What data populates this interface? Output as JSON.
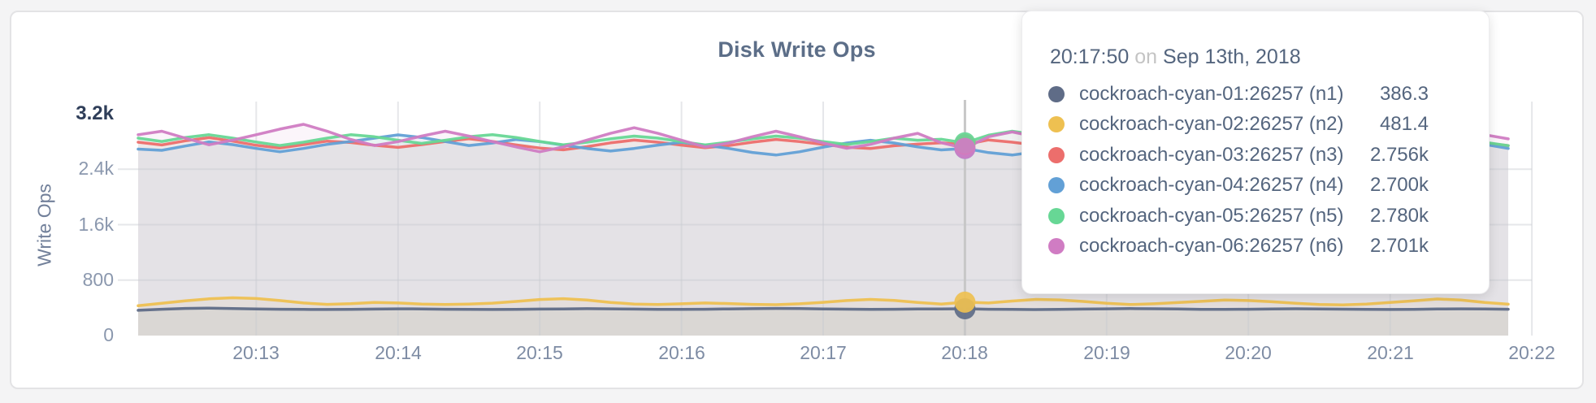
{
  "page": {
    "background_color": "#f4f4f5",
    "card_background": "#ffffff"
  },
  "chart": {
    "title": "Disk Write Ops",
    "y_axis_title": "Write Ops"
  },
  "tooltip": {
    "time": "20:17:50",
    "connector": "on",
    "date": "Sep 13th, 2018"
  },
  "chart_data": {
    "type": "line",
    "title": "Disk Write Ops",
    "xlabel": "",
    "ylabel": "Write Ops",
    "ylim": [
      0,
      3200
    ],
    "grid": true,
    "legend_position": "tooltip-only",
    "x_start_time": "20:12:10",
    "x_interval_seconds": 10,
    "x_ticks": [
      {
        "label": "20:13",
        "t": 50
      },
      {
        "label": "20:14",
        "t": 110
      },
      {
        "label": "20:15",
        "t": 170
      },
      {
        "label": "20:16",
        "t": 230
      },
      {
        "label": "20:17",
        "t": 290
      },
      {
        "label": "20:18",
        "t": 350
      },
      {
        "label": "20:19",
        "t": 410
      },
      {
        "label": "20:20",
        "t": 470
      },
      {
        "label": "20:21",
        "t": 530
      },
      {
        "label": "20:22",
        "t": 590
      }
    ],
    "y_ticks": [
      {
        "label": "0",
        "value": 0
      },
      {
        "label": "800",
        "value": 800
      },
      {
        "label": "1.6k",
        "value": 1600
      },
      {
        "label": "2.4k",
        "value": 2400
      },
      {
        "label": "3.2k",
        "value": 3200,
        "emphasis": true
      }
    ],
    "hover": {
      "index": 35,
      "time": "20:17:50",
      "date": "Sep 13th, 2018"
    },
    "series": [
      {
        "name": "cockroach-cyan-01:26257 (n1)",
        "color": "#5f6c87",
        "hover_value_display": "386.3",
        "values": [
          365,
          380,
          392,
          396,
          390,
          384,
          380,
          378,
          376,
          378,
          382,
          386,
          384,
          380,
          378,
          376,
          378,
          382,
          385,
          388,
          386,
          382,
          379,
          377,
          380,
          384,
          388,
          391,
          389,
          385,
          381,
          378,
          380,
          384,
          383,
          386.3,
          380,
          377,
          375,
          378,
          382,
          386,
          389,
          387,
          383,
          379,
          377,
          380,
          384,
          387,
          385,
          381,
          378,
          376,
          379,
          383,
          386,
          384,
          380
        ]
      },
      {
        "name": "cockroach-cyan-02:26257 (n2)",
        "color": "#eec051",
        "hover_value_display": "481.4",
        "values": [
          430,
          465,
          500,
          530,
          545,
          535,
          505,
          470,
          450,
          460,
          478,
          470,
          455,
          448,
          455,
          468,
          492,
          520,
          532,
          512,
          478,
          455,
          448,
          458,
          470,
          462,
          450,
          445,
          458,
          480,
          505,
          522,
          508,
          478,
          455,
          481.4,
          470,
          498,
          522,
          515,
          492,
          465,
          448,
          458,
          476,
          494,
          512,
          505,
          488,
          465,
          448,
          442,
          455,
          478,
          502,
          528,
          512,
          478,
          452
        ]
      },
      {
        "name": "cockroach-cyan-03:26257 (n3)",
        "color": "#ec6e6c",
        "hover_value_display": "2.756k",
        "values": [
          2790,
          2750,
          2810,
          2855,
          2805,
          2745,
          2705,
          2755,
          2805,
          2785,
          2745,
          2715,
          2755,
          2800,
          2840,
          2800,
          2750,
          2705,
          2680,
          2725,
          2780,
          2820,
          2790,
          2748,
          2710,
          2740,
          2790,
          2830,
          2798,
          2758,
          2718,
          2700,
          2738,
          2762,
          2782,
          2756,
          2822,
          2790,
          2748,
          2708,
          2690,
          2730,
          2780,
          2812,
          2780,
          2740,
          2702,
          2722,
          2760,
          2800,
          2778,
          2738,
          2700,
          2682,
          2722,
          2770,
          2810,
          2778,
          2740
        ]
      },
      {
        "name": "cockroach-cyan-04:26257 (n4)",
        "color": "#62a0d6",
        "hover_value_display": "2.700k",
        "values": [
          2690,
          2672,
          2735,
          2795,
          2755,
          2700,
          2652,
          2700,
          2758,
          2800,
          2848,
          2895,
          2858,
          2800,
          2742,
          2778,
          2828,
          2798,
          2748,
          2700,
          2662,
          2700,
          2748,
          2788,
          2748,
          2700,
          2642,
          2605,
          2652,
          2718,
          2778,
          2818,
          2778,
          2722,
          2678,
          2700,
          2640,
          2605,
          2650,
          2718,
          2778,
          2818,
          2788,
          2740,
          2700,
          2738,
          2788,
          2828,
          2798,
          2748,
          2700,
          2662,
          2700,
          2758,
          2818,
          2858,
          2818,
          2758,
          2700
        ]
      },
      {
        "name": "cockroach-cyan-05:26257 (n5)",
        "color": "#67d795",
        "hover_value_display": "2.780k",
        "values": [
          2848,
          2800,
          2858,
          2898,
          2848,
          2792,
          2742,
          2790,
          2848,
          2898,
          2868,
          2818,
          2772,
          2818,
          2868,
          2898,
          2858,
          2800,
          2752,
          2790,
          2838,
          2878,
          2848,
          2798,
          2750,
          2790,
          2838,
          2878,
          2848,
          2798,
          2758,
          2798,
          2848,
          2818,
          2832,
          2780,
          2890,
          2948,
          2898,
          2838,
          2782,
          2820,
          2868,
          2898,
          2858,
          2808,
          2758,
          2798,
          2848,
          2888,
          2848,
          2798,
          2750,
          2788,
          2838,
          2878,
          2838,
          2788,
          2740
        ]
      },
      {
        "name": "cockroach-cyan-06:26257 (n6)",
        "color": "#d07cc3",
        "hover_value_display": "2.701k",
        "values": [
          2898,
          2948,
          2848,
          2752,
          2820,
          2898,
          2978,
          3048,
          2948,
          2830,
          2742,
          2798,
          2878,
          2948,
          2878,
          2798,
          2722,
          2652,
          2722,
          2820,
          2918,
          2998,
          2918,
          2818,
          2722,
          2778,
          2868,
          2948,
          2868,
          2778,
          2702,
          2758,
          2848,
          2918,
          2782,
          2701,
          2868,
          2938,
          2868,
          2778,
          2702,
          2652,
          2722,
          2808,
          2898,
          2948,
          2878,
          2798,
          2722,
          2768,
          2848,
          2918,
          2858,
          2778,
          2702,
          2748,
          2828,
          2898,
          2838
        ]
      }
    ]
  }
}
